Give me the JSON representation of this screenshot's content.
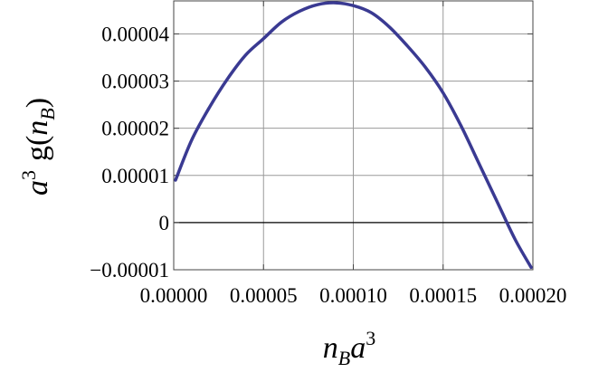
{
  "chart_data": {
    "type": "line",
    "title": "",
    "xlabel": {
      "base": "n",
      "sub": "B",
      "mid": "a",
      "sup": "3"
    },
    "ylabel": {
      "a": "a",
      "sup": "3",
      "g": "g(",
      "n": "n",
      "sub": "B",
      "close": ")"
    },
    "xlim": [
      0,
      0.0002
    ],
    "ylim": [
      -1e-05,
      4.7e-05
    ],
    "xticks": [
      0,
      5e-05,
      0.0001,
      0.00015,
      0.0002
    ],
    "xtick_labels": [
      "0.00000",
      "0.00005",
      "0.00010",
      "0.00015",
      "0.00020"
    ],
    "yticks": [
      -1e-05,
      0,
      1e-05,
      2e-05,
      3e-05,
      4e-05
    ],
    "ytick_labels": [
      "−0.00001",
      "0",
      "0.00001",
      "0.00002",
      "0.00003",
      "0.00004"
    ],
    "grid": true,
    "zero_line": true,
    "series": [
      {
        "color": "#3a3a92",
        "x": [
          1e-06,
          1e-05,
          2e-05,
          3e-05,
          4e-05,
          5e-05,
          6e-05,
          7e-05,
          8e-05,
          9e-05,
          0.0001,
          0.00011,
          0.00012,
          0.00013,
          0.00014,
          0.00015,
          0.00016,
          0.00017,
          0.00018,
          0.00019,
          0.000199
        ],
        "y": [
          9e-06,
          1.75e-05,
          2.45e-05,
          3.05e-05,
          3.55e-05,
          3.9e-05,
          4.25e-05,
          4.48e-05,
          4.62e-05,
          4.66e-05,
          4.6e-05,
          4.45e-05,
          4.15e-05,
          3.75e-05,
          3.3e-05,
          2.75e-05,
          2.05e-05,
          1.25e-05,
          4.5e-06,
          -3.5e-06,
          -9.5e-06
        ]
      }
    ]
  }
}
